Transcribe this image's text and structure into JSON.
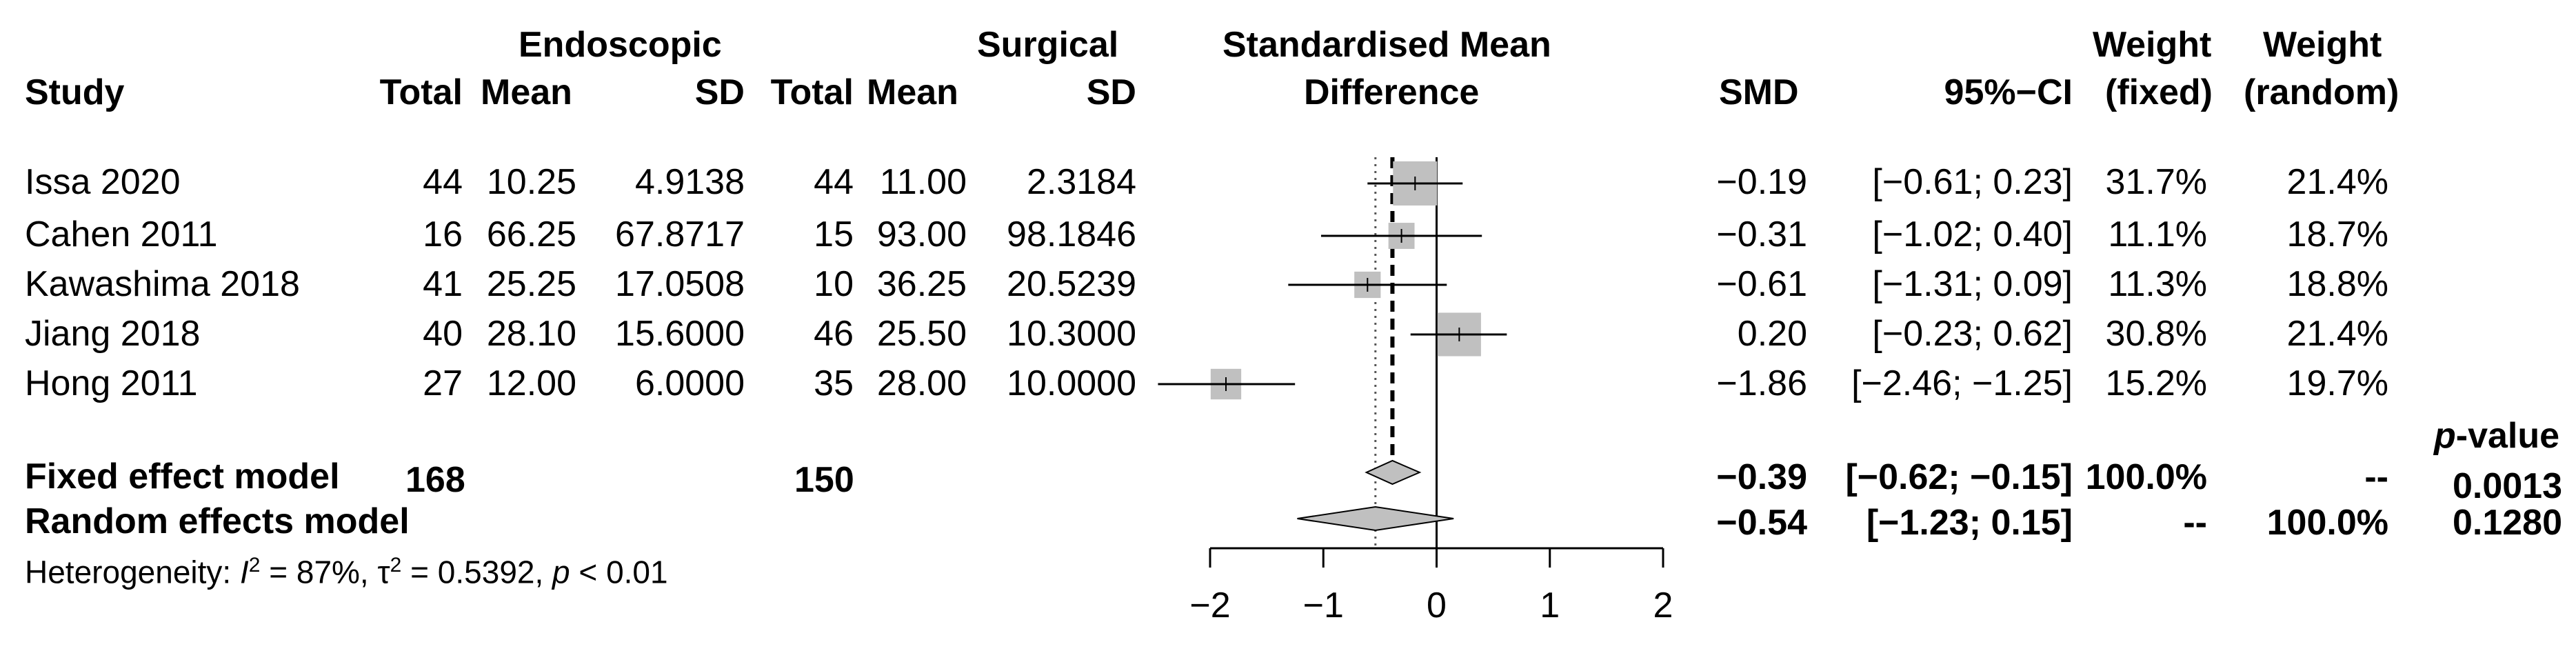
{
  "header": {
    "study": "Study",
    "endoscopic": "Endoscopic",
    "surgical": "Surgical",
    "total": "Total",
    "mean": "Mean",
    "sd": "SD",
    "smd_title_1": "Standardised Mean",
    "smd_title_2": "Difference",
    "smd": "SMD",
    "ci": "95%−CI",
    "weight": "Weight",
    "fixed": "(fixed)",
    "random": "(random)",
    "pvalue": "-value",
    "pvalue_italic": "p"
  },
  "studies": [
    {
      "name": "Issa 2020",
      "e_total": "44",
      "e_mean": "10.25",
      "e_sd": "4.9138",
      "s_total": "44",
      "s_mean": "11.00",
      "s_sd": "2.3184",
      "smd": "−0.19",
      "ci": "[−0.61;  0.23]",
      "w_fixed": "31.7%",
      "w_random": "21.4%"
    },
    {
      "name": "Cahen 2011",
      "e_total": "16",
      "e_mean": "66.25",
      "e_sd": "67.8717",
      "s_total": "15",
      "s_mean": "93.00",
      "s_sd": "98.1846",
      "smd": "−0.31",
      "ci": "[−1.02;  0.40]",
      "w_fixed": "11.1%",
      "w_random": "18.7%"
    },
    {
      "name": "Kawashima 2018",
      "e_total": "41",
      "e_mean": "25.25",
      "e_sd": "17.0508",
      "s_total": "10",
      "s_mean": "36.25",
      "s_sd": "20.5239",
      "smd": "−0.61",
      "ci": "[−1.31;  0.09]",
      "w_fixed": "11.3%",
      "w_random": "18.8%"
    },
    {
      "name": "Jiang 2018",
      "e_total": "40",
      "e_mean": "28.10",
      "e_sd": "15.6000",
      "s_total": "46",
      "s_mean": "25.50",
      "s_sd": "10.3000",
      "smd": "0.20",
      "ci": "[−0.23;  0.62]",
      "w_fixed": "30.8%",
      "w_random": "21.4%"
    },
    {
      "name": "Hong 2011",
      "e_total": "27",
      "e_mean": "12.00",
      "e_sd": "6.0000",
      "s_total": "35",
      "s_mean": "28.00",
      "s_sd": "10.0000",
      "smd": "−1.86",
      "ci": "[−2.46; −1.25]",
      "w_fixed": "15.2%",
      "w_random": "19.7%"
    }
  ],
  "fixed_model": {
    "label": "Fixed effect model",
    "e_total": "168",
    "s_total": "150",
    "smd": "−0.39",
    "ci": "[−0.62; −0.15]",
    "w_fixed": "100.0%",
    "w_random": "--",
    "pvalue": "0.0013"
  },
  "random_model": {
    "label": "Random effects model",
    "smd": "−0.54",
    "ci": "[−1.23;  0.15]",
    "w_fixed": "--",
    "w_random": "100.0%",
    "pvalue": "0.1280"
  },
  "heterogeneity": {
    "prefix": "Heterogeneity: ",
    "i_sym": "I",
    "sup2": "2",
    "i_val": " = 87%, ",
    "tau_sym": "τ",
    "tau_val": " = 0.5392, ",
    "p_sym": "p",
    "p_val": " < 0.01"
  },
  "chart_data": {
    "type": "forest",
    "xlim": [
      -2,
      2
    ],
    "ticks": [
      -2,
      -1,
      0,
      1,
      2
    ],
    "tick_labels": [
      "−2",
      "−1",
      "0",
      "1",
      "2"
    ],
    "null_line": 0,
    "studies": [
      {
        "name": "Issa 2020",
        "smd": -0.19,
        "lower": -0.61,
        "upper": 0.23,
        "weight_fixed": 31.7
      },
      {
        "name": "Cahen 2011",
        "smd": -0.31,
        "lower": -1.02,
        "upper": 0.4,
        "weight_fixed": 11.1
      },
      {
        "name": "Kawashima 2018",
        "smd": -0.61,
        "lower": -1.31,
        "upper": 0.09,
        "weight_fixed": 11.3
      },
      {
        "name": "Jiang 2018",
        "smd": 0.2,
        "lower": -0.23,
        "upper": 0.62,
        "weight_fixed": 30.8
      },
      {
        "name": "Hong 2011",
        "smd": -1.86,
        "lower": -2.46,
        "upper": -1.25,
        "weight_fixed": 15.2
      }
    ],
    "fixed": {
      "smd": -0.39,
      "lower": -0.62,
      "upper": -0.15
    },
    "random": {
      "smd": -0.54,
      "lower": -1.23,
      "upper": 0.15
    },
    "colors": {
      "square": "#c0c0c0",
      "diamond": "#c0c0c0",
      "line": "#000000"
    }
  }
}
